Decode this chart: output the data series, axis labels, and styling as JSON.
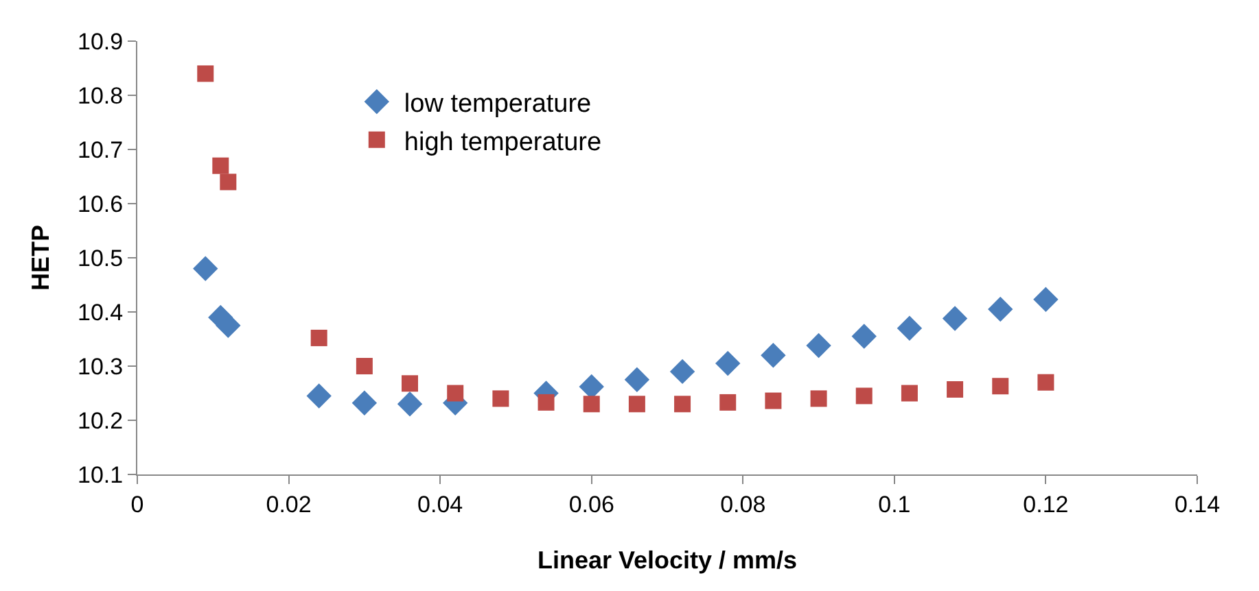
{
  "chart_data": {
    "type": "scatter",
    "xlabel": "Linear Velocity / mm/s",
    "ylabel": "HETP",
    "xlim": [
      0,
      0.14
    ],
    "xticks": [
      0,
      0.02,
      0.04,
      0.06,
      0.08,
      0.1,
      0.12,
      0.14
    ],
    "ylim": [
      10.1,
      10.9
    ],
    "yticks": [
      10.1,
      10.2,
      10.3,
      10.4,
      10.5,
      10.6,
      10.7,
      10.8,
      10.9
    ],
    "grid": false,
    "legend": "top left",
    "x": [
      0.009,
      0.011,
      0.012,
      0.024,
      0.03,
      0.036,
      0.042,
      0.048,
      0.054,
      0.06,
      0.066,
      0.072,
      0.078,
      0.084,
      0.09,
      0.096,
      0.102,
      0.108,
      0.114,
      0.12
    ],
    "series": [
      {
        "name": "low temperature",
        "color": "#4a7ebb",
        "marker": "diamond",
        "values": [
          10.48,
          10.39,
          10.375,
          10.245,
          10.232,
          10.23,
          10.232,
          null,
          10.25,
          10.262,
          10.275,
          10.29,
          10.305,
          10.32,
          10.338,
          10.355,
          10.37,
          10.388,
          10.405,
          10.423
        ]
      },
      {
        "name": "high temperature",
        "color": "#be4b48",
        "marker": "square",
        "values": [
          10.84,
          10.67,
          10.64,
          10.352,
          10.3,
          10.268,
          10.25,
          10.24,
          10.233,
          10.23,
          10.23,
          10.23,
          10.233,
          10.236,
          10.24,
          10.245,
          10.25,
          10.257,
          10.263,
          10.27
        ]
      }
    ]
  }
}
